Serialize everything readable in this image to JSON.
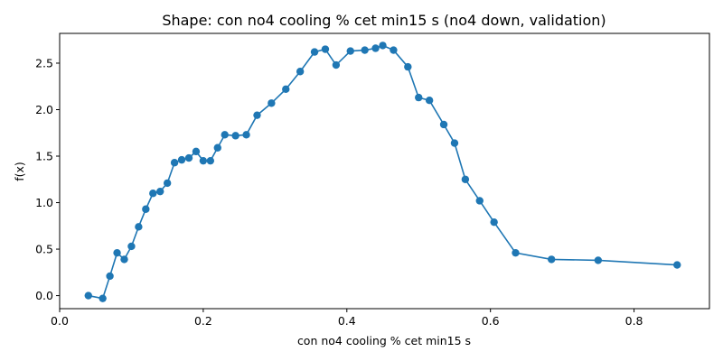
{
  "chart_data": {
    "type": "line",
    "title": "Shape: con no4 cooling % cet min15 s (no4 down, validation)",
    "xlabel": "con no4 cooling % cet min15 s",
    "ylabel": "f(x)",
    "xlim": [
      0.0,
      0.905
    ],
    "ylim": [
      -0.14,
      2.82
    ],
    "x_ticks": [
      0.0,
      0.2,
      0.4,
      0.6,
      0.8
    ],
    "x_tick_labels": [
      "0.0",
      "0.2",
      "0.4",
      "0.6",
      "0.8"
    ],
    "y_ticks": [
      0.0,
      0.5,
      1.0,
      1.5,
      2.0,
      2.5
    ],
    "y_tick_labels": [
      "0.0",
      "0.5",
      "1.0",
      "1.5",
      "2.0",
      "2.5"
    ],
    "grid": false,
    "legend": "none",
    "color": "#1f77b4",
    "series": [
      {
        "x": [
          0.04,
          0.06,
          0.07,
          0.08,
          0.09,
          0.1,
          0.11,
          0.12,
          0.13,
          0.14,
          0.15,
          0.16,
          0.17,
          0.18,
          0.19,
          0.2,
          0.21,
          0.22,
          0.23,
          0.245,
          0.26,
          0.275,
          0.295,
          0.315,
          0.335,
          0.355,
          0.37,
          0.385,
          0.405,
          0.425,
          0.44,
          0.45,
          0.465,
          0.485,
          0.5,
          0.515,
          0.535,
          0.55,
          0.565,
          0.585,
          0.605,
          0.635,
          0.685,
          0.75,
          0.86
        ],
        "y": [
          0.0,
          -0.03,
          0.21,
          0.46,
          0.39,
          0.53,
          0.74,
          0.93,
          1.1,
          1.12,
          1.21,
          1.43,
          1.46,
          1.48,
          1.55,
          1.45,
          1.45,
          1.59,
          1.73,
          1.72,
          1.73,
          1.94,
          2.07,
          2.22,
          2.41,
          2.62,
          2.65,
          2.48,
          2.63,
          2.64,
          2.66,
          2.69,
          2.64,
          2.46,
          2.13,
          2.1,
          1.84,
          1.64,
          1.25,
          1.02,
          0.79,
          0.46,
          0.39,
          0.38,
          0.33
        ]
      }
    ]
  }
}
